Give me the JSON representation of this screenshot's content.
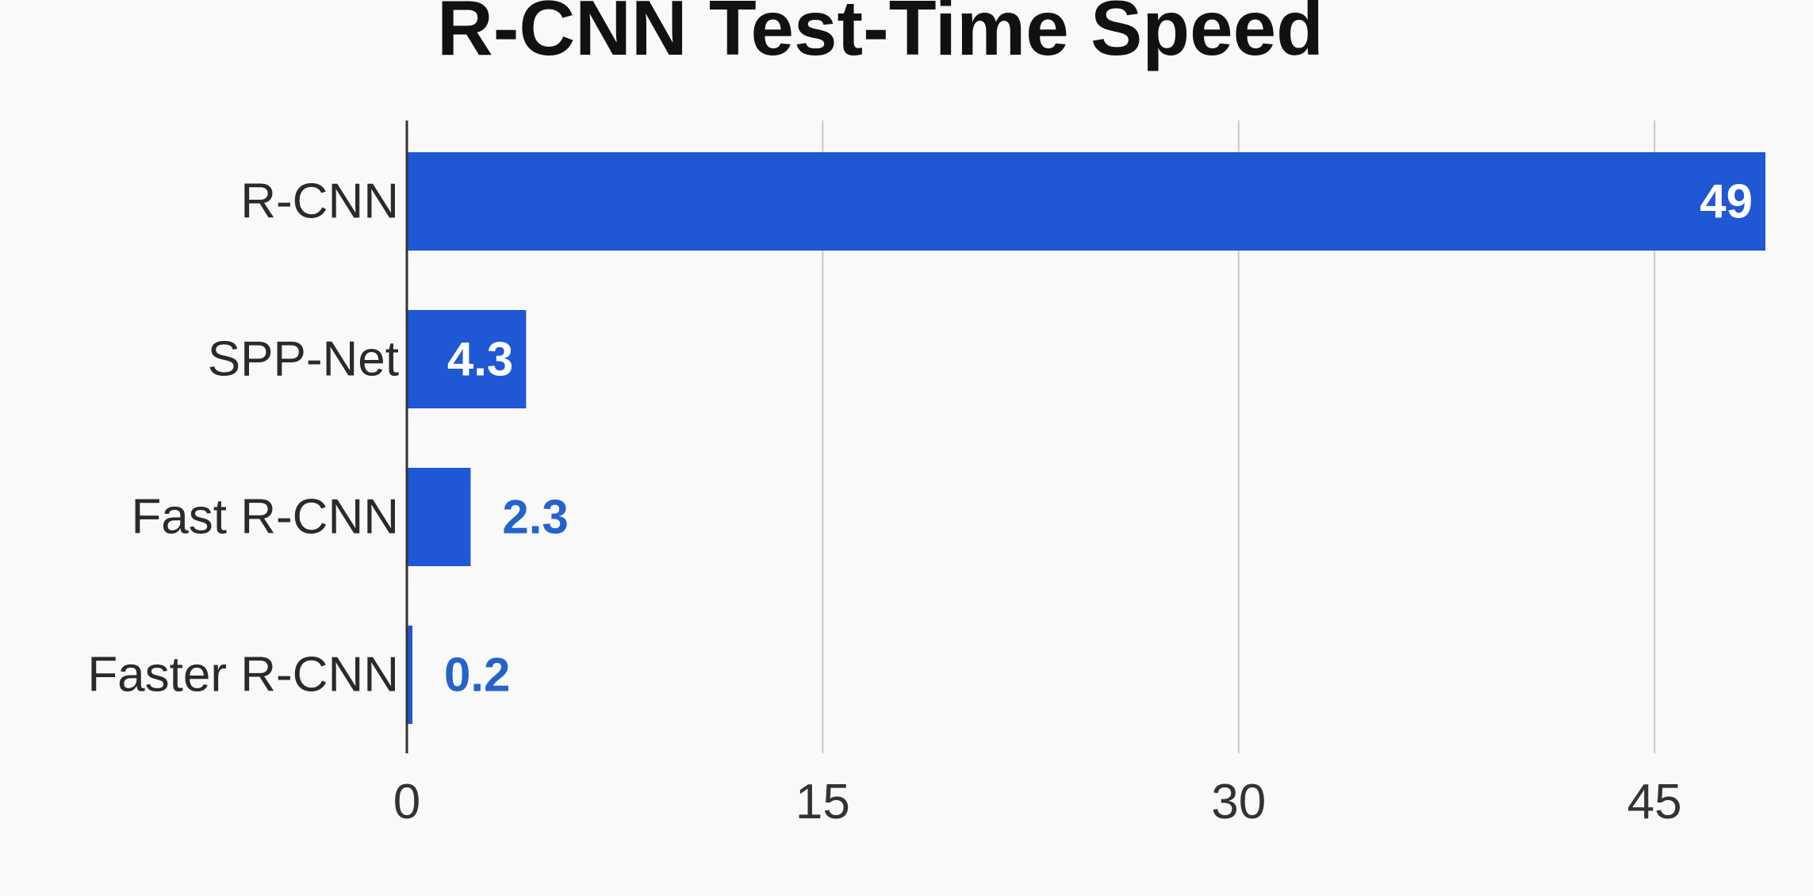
{
  "chart_data": {
    "type": "bar",
    "orientation": "horizontal",
    "title": "R-CNN Test-Time Speed",
    "categories": [
      "R-CNN",
      "SPP-Net",
      "Fast R-CNN",
      "Faster R-CNN"
    ],
    "values": [
      49,
      4.3,
      2.3,
      0.2
    ],
    "value_labels": [
      "49",
      "4.3",
      "2.3",
      "0.2"
    ],
    "xlim": [
      0,
      49
    ],
    "xticks": [
      0,
      15,
      30,
      45
    ],
    "xtick_labels": [
      "0",
      "15",
      "30",
      "45"
    ],
    "grid": "vertical",
    "colors": {
      "bar": "#1f57d4",
      "label_inside": "#ffffff",
      "label_outside": "#2563c9",
      "grid": "#c8c8c8",
      "axis": "#333333"
    }
  }
}
